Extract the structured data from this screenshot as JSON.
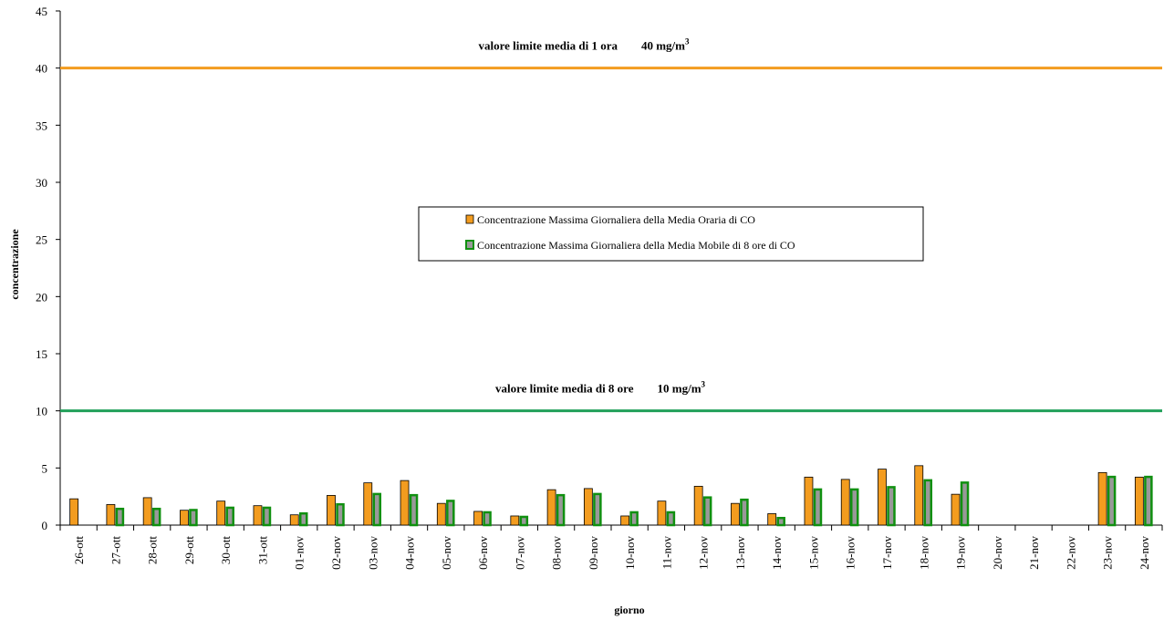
{
  "chart_data": {
    "type": "bar",
    "xlabel": "giorno",
    "ylabel": "concentrazione",
    "ylim": [
      0,
      45
    ],
    "yticks": [
      0,
      5,
      10,
      15,
      20,
      25,
      30,
      35,
      40,
      45
    ],
    "categories": [
      "26-ott",
      "27-ott",
      "28-ott",
      "29-ott",
      "30-ott",
      "31-ott",
      "01-nov",
      "02-nov",
      "03-nov",
      "04-nov",
      "05-nov",
      "06-nov",
      "07-nov",
      "08-nov",
      "09-nov",
      "10-nov",
      "11-nov",
      "12-nov",
      "13-nov",
      "14-nov",
      "15-nov",
      "16-nov",
      "17-nov",
      "18-nov",
      "19-nov",
      "20-nov",
      "21-nov",
      "22-nov",
      "23-nov",
      "24-nov"
    ],
    "series": [
      {
        "name": "Concentrazione Massima Giornaliera della Media Oraria di CO",
        "color": "#F39C1F",
        "values": [
          2.3,
          1.8,
          2.4,
          1.3,
          2.1,
          1.7,
          0.9,
          2.6,
          3.7,
          3.9,
          1.9,
          1.2,
          0.8,
          3.1,
          3.2,
          0.8,
          2.1,
          3.4,
          1.9,
          1.0,
          4.2,
          4.0,
          4.9,
          5.2,
          2.7,
          null,
          null,
          null,
          4.6,
          4.2
        ]
      },
      {
        "name": "Concentrazione Massima Giornaliera della Media Mobile di 8 ore di CO",
        "color": "#999999",
        "edge_color": "#109010",
        "values": [
          null,
          1.5,
          1.5,
          1.4,
          1.6,
          1.6,
          1.1,
          1.9,
          2.8,
          2.7,
          2.2,
          1.2,
          0.8,
          2.7,
          2.8,
          1.2,
          1.2,
          2.5,
          2.3,
          0.7,
          3.2,
          3.2,
          3.4,
          4.0,
          3.8,
          null,
          null,
          null,
          4.3,
          4.3
        ]
      }
    ],
    "reference_lines": [
      {
        "value": 40,
        "color": "#F39C1F",
        "label": "valore limite media di 1 ora",
        "limit_text": "40 mg/m",
        "superscript": "3"
      },
      {
        "value": 10,
        "color": "#21A05A",
        "label": "valore limite media di 8 ore",
        "limit_text": "10 mg/m",
        "superscript": "3"
      }
    ],
    "grid": false,
    "legend_position": "center"
  }
}
